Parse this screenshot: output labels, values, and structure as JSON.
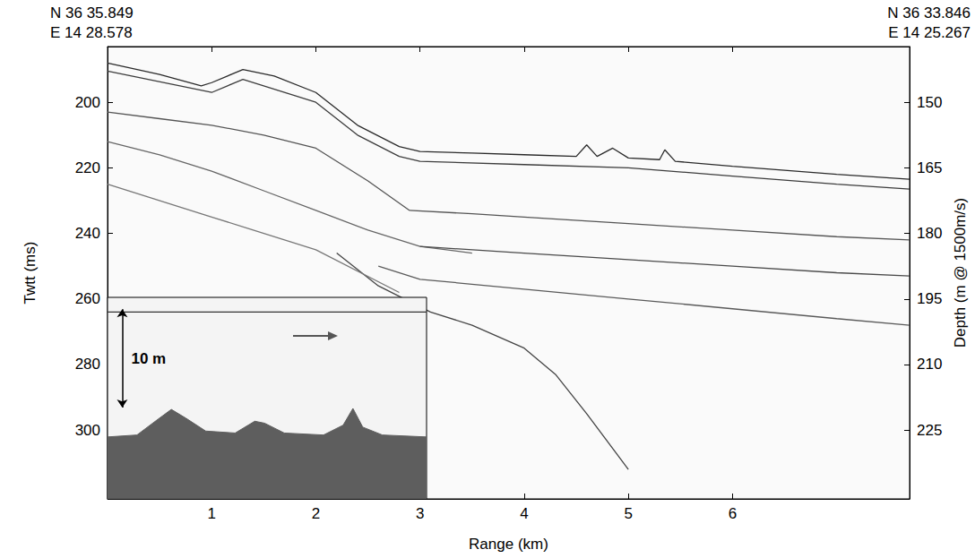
{
  "chart_data": [
    {
      "type": "line",
      "x_label": "Range (km)",
      "y_label": "Twtt (ms)",
      "y2_label": "Depth (m @ 1500m/s)",
      "start_label": [
        "N 36 35.849",
        "E 14 28.578"
      ],
      "end_label": [
        "N 36 33.846",
        "E 14 25.267"
      ],
      "grid": false,
      "xlim": [
        0,
        7.7
      ],
      "xticks": [
        1,
        2,
        3,
        4,
        5,
        6
      ],
      "ylim": [
        183,
        321
      ],
      "yticks": [
        200,
        220,
        240,
        260,
        280,
        300
      ],
      "y2lim": [
        137.25,
        240.75
      ],
      "y2ticks": [
        150,
        165,
        180,
        195,
        210,
        225
      ],
      "series": [
        {
          "color": "#2a2a2a",
          "x": [
            0,
            0.5,
            0.9,
            1.0,
            1.3,
            1.6,
            2.0,
            2.4,
            2.8,
            3.0,
            3.5,
            4.0,
            4.5,
            4.6,
            4.7,
            4.85,
            5.0,
            5.3,
            5.35,
            5.45,
            6.0,
            7.0,
            7.7
          ],
          "values": [
            188,
            191.5,
            195,
            194,
            190,
            192,
            197,
            207,
            213.5,
            215,
            215.5,
            216,
            216.5,
            213,
            216.5,
            214,
            217,
            217.5,
            214.5,
            218,
            219.5,
            222,
            223.5
          ]
        },
        {
          "color": "#3c3c3c",
          "x": [
            0,
            1.0,
            1.3,
            2.0,
            2.4,
            2.8,
            3.0,
            4.0,
            5.0,
            6.0,
            7.0,
            7.7
          ],
          "values": [
            190.5,
            197,
            193,
            200,
            210,
            216.5,
            218,
            219,
            220,
            222.5,
            225,
            226.5
          ]
        },
        {
          "color": "#555555",
          "x": [
            0,
            0.5,
            1.0,
            1.5,
            2.0,
            2.5,
            2.9
          ],
          "values": [
            203,
            205,
            207,
            210,
            214,
            224,
            233
          ]
        },
        {
          "color": "#666666",
          "x": [
            0,
            0.5,
            1,
            1.5,
            2,
            2.5,
            3,
            3.5
          ],
          "values": [
            212,
            216,
            221,
            227,
            233,
            239,
            244,
            246
          ]
        },
        {
          "color": "#555555",
          "x": [
            2.9,
            3.5,
            4,
            5,
            6,
            7,
            7.7
          ],
          "values": [
            233,
            234,
            235,
            237,
            239,
            241,
            242
          ]
        },
        {
          "color": "#4a4a4a",
          "x": [
            3,
            4,
            5,
            6,
            7,
            7.7
          ],
          "values": [
            244,
            246,
            248,
            250,
            252,
            253
          ]
        },
        {
          "color": "#5a5a5a",
          "x": [
            2.6,
            3,
            4,
            5,
            6,
            7,
            7.7
          ],
          "values": [
            250,
            254,
            257,
            260,
            263,
            266,
            268
          ]
        },
        {
          "color": "#444444",
          "x": [
            2.2,
            2.6,
            3.1,
            3.5,
            4,
            4.3,
            4.6,
            5
          ],
          "values": [
            246,
            256,
            264,
            268,
            275,
            283,
            295,
            312
          ]
        },
        {
          "color": "#777777",
          "x": [
            0,
            1,
            2,
            2.8
          ],
          "values": [
            225,
            235,
            245,
            258
          ]
        }
      ]
    },
    {
      "type": "line",
      "tick_labels": false,
      "xlim": [
        0,
        32.5
      ],
      "ylim": [
        0,
        20.5
      ],
      "scale_bar": {
        "label": "10 m",
        "x": 1.5,
        "from": 1.2,
        "to": 11.2
      },
      "series": [
        {
          "color": "#333333",
          "x": [
            0,
            32.5
          ],
          "values": [
            1.5,
            1.5
          ]
        },
        {
          "type": "area",
          "color": "#5e5e5e",
          "x": [
            0,
            3,
            5,
            6.5,
            8,
            10,
            13,
            15,
            16,
            18,
            22,
            24,
            25,
            26,
            28,
            32.5
          ],
          "values": [
            14.2,
            14.0,
            12.5,
            11.4,
            12.3,
            13.6,
            13.8,
            12.6,
            12.8,
            13.8,
            14.0,
            13.0,
            11.3,
            13.2,
            14.0,
            14.2
          ]
        }
      ]
    }
  ]
}
